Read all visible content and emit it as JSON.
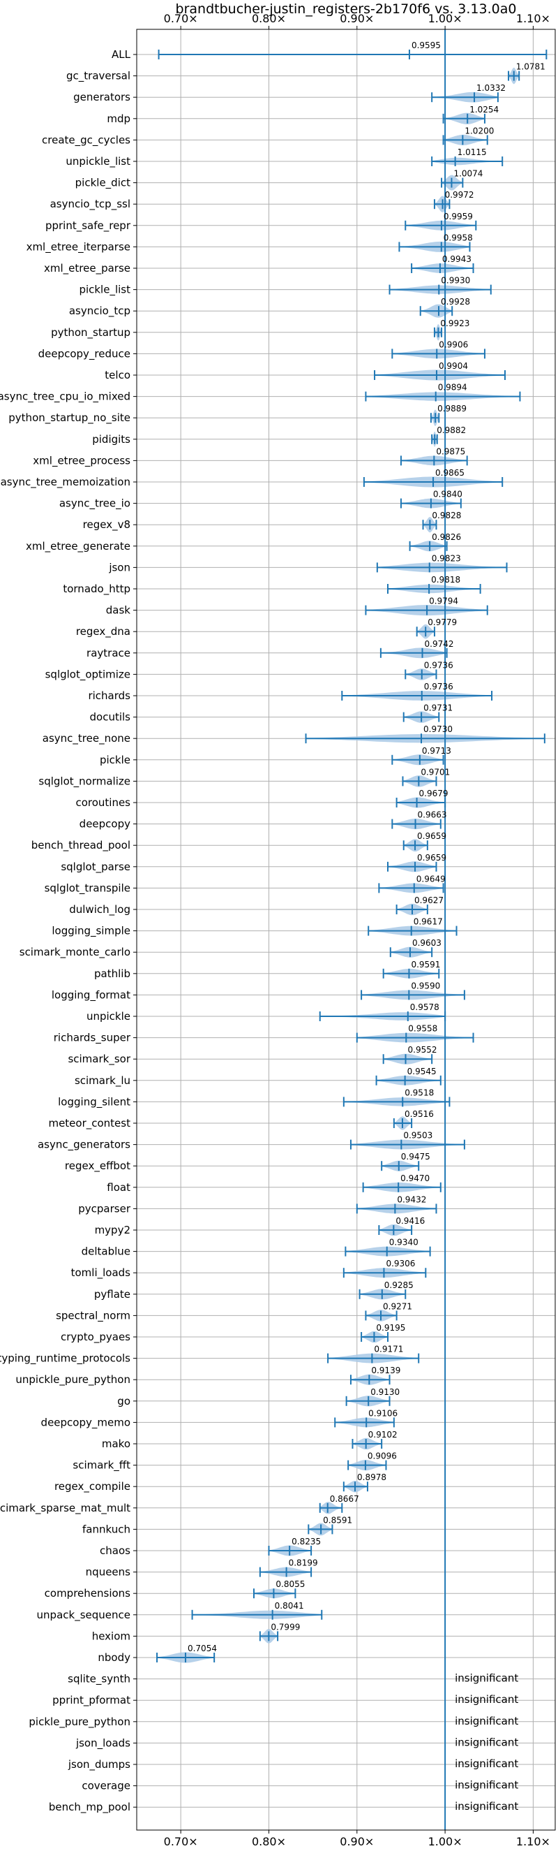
{
  "chart_data": {
    "type": "violin",
    "title": "brandtbucher-justin_registers-2b170f6 vs. 3.13.0a0",
    "xlabel": "",
    "ylabel": "",
    "xlim": [
      0.65,
      1.125
    ],
    "xticks": [
      0.7,
      0.8,
      0.9,
      1.0,
      1.1
    ],
    "xtick_labels": [
      "0.70×",
      "0.80×",
      "0.90×",
      "1.00×",
      "1.10×"
    ],
    "reference_line": 1.0,
    "grid": true,
    "colors": {
      "violin": "#a9c9e6",
      "line": "#1f77b4"
    },
    "insignificant_label": "insignificant",
    "benchmarks": [
      {
        "name": "ALL",
        "mean": 0.9595,
        "min": 0.675,
        "max": 1.115,
        "width": 0.07
      },
      {
        "name": "gc_traversal",
        "mean": 1.0781,
        "min": 1.072,
        "max": 1.084,
        "width": 0.85
      },
      {
        "name": "generators",
        "mean": 1.0332,
        "min": 0.985,
        "max": 1.06,
        "width": 0.55
      },
      {
        "name": "mdp",
        "mean": 1.0254,
        "min": 0.998,
        "max": 1.045,
        "width": 0.6
      },
      {
        "name": "create_gc_cycles",
        "mean": 1.02,
        "min": 0.998,
        "max": 1.048,
        "width": 0.55
      },
      {
        "name": "unpickle_list",
        "mean": 1.0115,
        "min": 0.985,
        "max": 1.065,
        "width": 0.4
      },
      {
        "name": "pickle_dict",
        "mean": 1.0074,
        "min": 0.996,
        "max": 1.02,
        "width": 0.8
      },
      {
        "name": "asyncio_tcp_ssl",
        "mean": 0.9972,
        "min": 0.988,
        "max": 1.005,
        "width": 0.85
      },
      {
        "name": "pprint_safe_repr",
        "mean": 0.9959,
        "min": 0.955,
        "max": 1.035,
        "width": 0.5
      },
      {
        "name": "xml_etree_iterparse",
        "mean": 0.9958,
        "min": 0.948,
        "max": 1.028,
        "width": 0.55
      },
      {
        "name": "xml_etree_parse",
        "mean": 0.9943,
        "min": 0.962,
        "max": 1.032,
        "width": 0.5
      },
      {
        "name": "pickle_list",
        "mean": 0.993,
        "min": 0.937,
        "max": 1.052,
        "width": 0.45
      },
      {
        "name": "asyncio_tcp",
        "mean": 0.9928,
        "min": 0.972,
        "max": 1.008,
        "width": 0.7
      },
      {
        "name": "python_startup",
        "mean": 0.9923,
        "min": 0.988,
        "max": 0.996,
        "width": 0.85
      },
      {
        "name": "deepcopy_reduce",
        "mean": 0.9906,
        "min": 0.94,
        "max": 1.045,
        "width": 0.5
      },
      {
        "name": "telco",
        "mean": 0.9904,
        "min": 0.92,
        "max": 1.068,
        "width": 0.55
      },
      {
        "name": "async_tree_cpu_io_mixed",
        "mean": 0.9894,
        "min": 0.91,
        "max": 1.085,
        "width": 0.45
      },
      {
        "name": "python_startup_no_site",
        "mean": 0.9889,
        "min": 0.984,
        "max": 0.993,
        "width": 0.85
      },
      {
        "name": "pidigits",
        "mean": 0.9882,
        "min": 0.985,
        "max": 0.991,
        "width": 0.8
      },
      {
        "name": "xml_etree_process",
        "mean": 0.9875,
        "min": 0.95,
        "max": 1.025,
        "width": 0.5
      },
      {
        "name": "async_tree_memoization",
        "mean": 0.9865,
        "min": 0.908,
        "max": 1.065,
        "width": 0.55
      },
      {
        "name": "async_tree_io",
        "mean": 0.984,
        "min": 0.95,
        "max": 1.018,
        "width": 0.5
      },
      {
        "name": "regex_v8",
        "mean": 0.9828,
        "min": 0.975,
        "max": 0.99,
        "width": 0.8
      },
      {
        "name": "xml_etree_generate",
        "mean": 0.9826,
        "min": 0.96,
        "max": 1.002,
        "width": 0.55
      },
      {
        "name": "json",
        "mean": 0.9823,
        "min": 0.923,
        "max": 1.07,
        "width": 0.5
      },
      {
        "name": "tornado_http",
        "mean": 0.9818,
        "min": 0.935,
        "max": 1.04,
        "width": 0.45
      },
      {
        "name": "dask",
        "mean": 0.9794,
        "min": 0.91,
        "max": 1.048,
        "width": 0.55
      },
      {
        "name": "regex_dna",
        "mean": 0.9779,
        "min": 0.968,
        "max": 0.988,
        "width": 0.75
      },
      {
        "name": "raytrace",
        "mean": 0.9742,
        "min": 0.927,
        "max": 1.002,
        "width": 0.55
      },
      {
        "name": "sqlglot_optimize",
        "mean": 0.9736,
        "min": 0.955,
        "max": 0.99,
        "width": 0.6
      },
      {
        "name": "richards",
        "mean": 0.9736,
        "min": 0.883,
        "max": 1.053,
        "width": 0.5
      },
      {
        "name": "docutils",
        "mean": 0.9731,
        "min": 0.953,
        "max": 0.993,
        "width": 0.6
      },
      {
        "name": "async_tree_none",
        "mean": 0.973,
        "min": 0.842,
        "max": 1.113,
        "width": 0.45
      },
      {
        "name": "pickle",
        "mean": 0.9713,
        "min": 0.94,
        "max": 0.998,
        "width": 0.55
      },
      {
        "name": "sqlglot_normalize",
        "mean": 0.9701,
        "min": 0.952,
        "max": 0.99,
        "width": 0.6
      },
      {
        "name": "coroutines",
        "mean": 0.9679,
        "min": 0.945,
        "max": 1.0,
        "width": 0.55
      },
      {
        "name": "deepcopy",
        "mean": 0.9663,
        "min": 0.94,
        "max": 0.995,
        "width": 0.55
      },
      {
        "name": "bench_thread_pool",
        "mean": 0.9659,
        "min": 0.953,
        "max": 0.98,
        "width": 0.65
      },
      {
        "name": "sqlglot_parse",
        "mean": 0.9659,
        "min": 0.935,
        "max": 0.99,
        "width": 0.55
      },
      {
        "name": "sqlglot_transpile",
        "mean": 0.9649,
        "min": 0.925,
        "max": 0.998,
        "width": 0.5
      },
      {
        "name": "dulwich_log",
        "mean": 0.9627,
        "min": 0.945,
        "max": 0.98,
        "width": 0.6
      },
      {
        "name": "logging_simple",
        "mean": 0.9617,
        "min": 0.913,
        "max": 1.013,
        "width": 0.5
      },
      {
        "name": "scimark_monte_carlo",
        "mean": 0.9603,
        "min": 0.938,
        "max": 0.985,
        "width": 0.55
      },
      {
        "name": "pathlib",
        "mean": 0.9591,
        "min": 0.93,
        "max": 0.993,
        "width": 0.5
      },
      {
        "name": "logging_format",
        "mean": 0.959,
        "min": 0.905,
        "max": 1.022,
        "width": 0.5
      },
      {
        "name": "unpickle",
        "mean": 0.9578,
        "min": 0.858,
        "max": 1.0,
        "width": 0.45
      },
      {
        "name": "richards_super",
        "mean": 0.9558,
        "min": 0.9,
        "max": 1.032,
        "width": 0.5
      },
      {
        "name": "scimark_sor",
        "mean": 0.9552,
        "min": 0.93,
        "max": 0.985,
        "width": 0.55
      },
      {
        "name": "scimark_lu",
        "mean": 0.9545,
        "min": 0.922,
        "max": 0.995,
        "width": 0.5
      },
      {
        "name": "logging_silent",
        "mean": 0.9518,
        "min": 0.885,
        "max": 1.005,
        "width": 0.45
      },
      {
        "name": "meteor_contest",
        "mean": 0.9516,
        "min": 0.942,
        "max": 0.962,
        "width": 0.7
      },
      {
        "name": "async_generators",
        "mean": 0.9503,
        "min": 0.893,
        "max": 1.022,
        "width": 0.5
      },
      {
        "name": "regex_effbot",
        "mean": 0.9475,
        "min": 0.928,
        "max": 0.97,
        "width": 0.55
      },
      {
        "name": "float",
        "mean": 0.947,
        "min": 0.907,
        "max": 0.995,
        "width": 0.5
      },
      {
        "name": "pycparser",
        "mean": 0.9432,
        "min": 0.9,
        "max": 0.99,
        "width": 0.5
      },
      {
        "name": "mypy2",
        "mean": 0.9416,
        "min": 0.925,
        "max": 0.962,
        "width": 0.6
      },
      {
        "name": "deltablue",
        "mean": 0.934,
        "min": 0.887,
        "max": 0.983,
        "width": 0.5
      },
      {
        "name": "tomli_loads",
        "mean": 0.9306,
        "min": 0.885,
        "max": 0.978,
        "width": 0.5
      },
      {
        "name": "pyflate",
        "mean": 0.9285,
        "min": 0.903,
        "max": 0.955,
        "width": 0.55
      },
      {
        "name": "spectral_norm",
        "mean": 0.9271,
        "min": 0.91,
        "max": 0.945,
        "width": 0.6
      },
      {
        "name": "crypto_pyaes",
        "mean": 0.9195,
        "min": 0.905,
        "max": 0.935,
        "width": 0.6
      },
      {
        "name": "typing_runtime_protocols",
        "mean": 0.9171,
        "min": 0.867,
        "max": 0.97,
        "width": 0.5
      },
      {
        "name": "unpickle_pure_python",
        "mean": 0.9139,
        "min": 0.893,
        "max": 0.937,
        "width": 0.55
      },
      {
        "name": "go",
        "mean": 0.913,
        "min": 0.888,
        "max": 0.937,
        "width": 0.55
      },
      {
        "name": "deepcopy_memo",
        "mean": 0.9106,
        "min": 0.875,
        "max": 0.942,
        "width": 0.5
      },
      {
        "name": "mako",
        "mean": 0.9102,
        "min": 0.895,
        "max": 0.928,
        "width": 0.6
      },
      {
        "name": "scimark_fft",
        "mean": 0.9096,
        "min": 0.89,
        "max": 0.933,
        "width": 0.55
      },
      {
        "name": "regex_compile",
        "mean": 0.8978,
        "min": 0.885,
        "max": 0.912,
        "width": 0.6
      },
      {
        "name": "scimark_sparse_mat_mult",
        "mean": 0.8667,
        "min": 0.858,
        "max": 0.883,
        "width": 0.65
      },
      {
        "name": "fannkuch",
        "mean": 0.8591,
        "min": 0.845,
        "max": 0.872,
        "width": 0.65
      },
      {
        "name": "chaos",
        "mean": 0.8235,
        "min": 0.8,
        "max": 0.848,
        "width": 0.55
      },
      {
        "name": "nqueens",
        "mean": 0.8199,
        "min": 0.79,
        "max": 0.848,
        "width": 0.5
      },
      {
        "name": "comprehensions",
        "mean": 0.8055,
        "min": 0.783,
        "max": 0.83,
        "width": 0.5
      },
      {
        "name": "unpack_sequence",
        "mean": 0.8041,
        "min": 0.713,
        "max": 0.86,
        "width": 0.45
      },
      {
        "name": "hexiom",
        "mean": 0.7999,
        "min": 0.79,
        "max": 0.81,
        "width": 0.75
      },
      {
        "name": "nbody",
        "mean": 0.7054,
        "min": 0.673,
        "max": 0.738,
        "width": 0.55
      },
      {
        "name": "sqlite_synth",
        "insignificant": true
      },
      {
        "name": "pprint_pformat",
        "insignificant": true
      },
      {
        "name": "pickle_pure_python",
        "insignificant": true
      },
      {
        "name": "json_loads",
        "insignificant": true
      },
      {
        "name": "json_dumps",
        "insignificant": true
      },
      {
        "name": "coverage",
        "insignificant": true
      },
      {
        "name": "bench_mp_pool",
        "insignificant": true
      }
    ]
  }
}
